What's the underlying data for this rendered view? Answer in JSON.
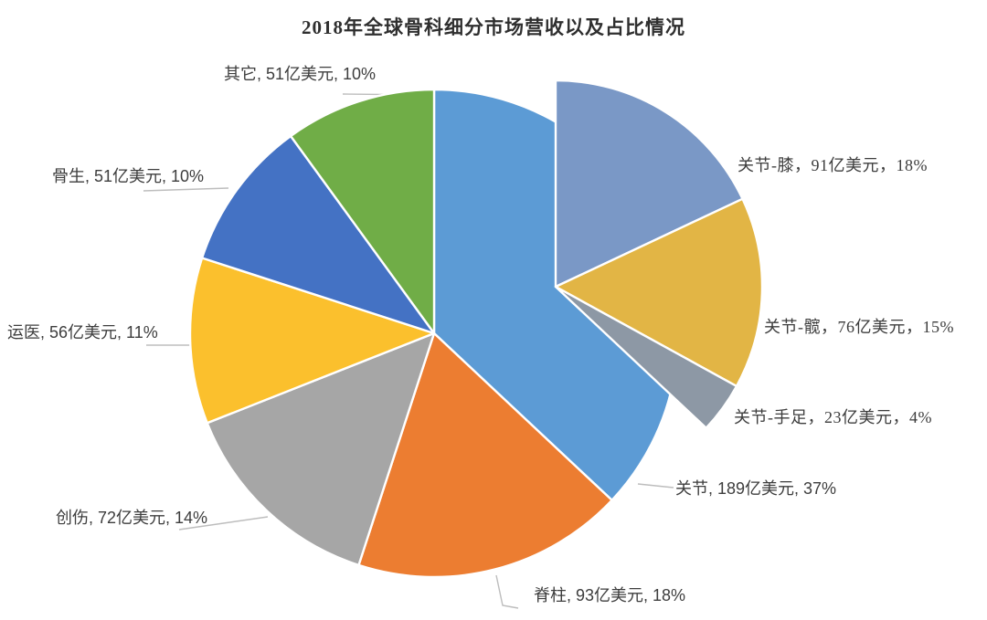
{
  "page": {
    "background": "#FFFFFF"
  },
  "chart_data": {
    "type": "pie",
    "title": "2018年全球骨科细分市场营收以及占比情况",
    "unit": "亿美元",
    "start_angle_deg": 0,
    "clockwise": true,
    "legend": "none",
    "data_labels": "outside-with-leader-lines",
    "slices": [
      {
        "id": "guanjie",
        "name": "关节",
        "value": 189,
        "percent": 37,
        "color": "#5C9BD5",
        "label_text": "关节, 189亿美元, 37%"
      },
      {
        "id": "jizhu",
        "name": "脊柱",
        "value": 93,
        "percent": 18,
        "color": "#EC7D31",
        "label_text": "脊柱, 93亿美元, 18%"
      },
      {
        "id": "chuangshang",
        "name": "创伤",
        "value": 72,
        "percent": 14,
        "color": "#A6A6A6",
        "label_text": "创伤, 72亿美元, 14%"
      },
      {
        "id": "yunyi",
        "name": "运医",
        "value": 56,
        "percent": 11,
        "color": "#FBC02D",
        "label_text": "运医, 56亿美元, 11%"
      },
      {
        "id": "gusheng",
        "name": "骨生",
        "value": 51,
        "percent": 10,
        "color": "#4472C4",
        "label_text": "骨生, 51亿美元, 10%"
      },
      {
        "id": "qita",
        "name": "其它",
        "value": 51,
        "percent": 10,
        "color": "#70AD47",
        "label_text": "其它, 51亿美元, 10%"
      }
    ],
    "joint_breakdown": {
      "parent": "关节",
      "style": "exploded-overlay",
      "slices": [
        {
          "id": "xi",
          "name": "关节-膝",
          "value": 91,
          "percent": 18,
          "color": "#7A98C6",
          "label_text": "关节-膝，91亿美元，18%"
        },
        {
          "id": "kuan",
          "name": "关节-髋",
          "value": 76,
          "percent": 15,
          "color": "#E2B545",
          "label_text": "关节-髋，76亿美元，15%"
        },
        {
          "id": "shouzu",
          "name": "关节-手足",
          "value": 23,
          "percent": 4,
          "color": "#8D98A5",
          "label_text": "关节-手足，23亿美元，4%"
        }
      ]
    }
  },
  "colors": {
    "title_text": "#2F2F2F",
    "label_text": "#3D3D3D",
    "leader_line": "#BDBDBD",
    "slice_border": "#FFFFFF"
  }
}
